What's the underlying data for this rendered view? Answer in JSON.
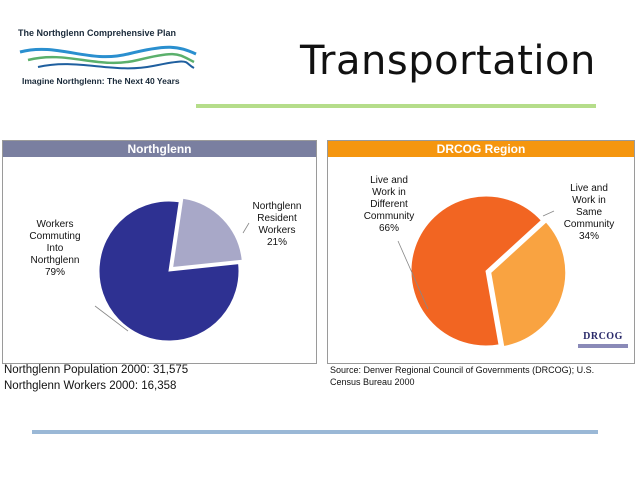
{
  "header": {
    "logo_top": "The Northglenn Comprehensive Plan",
    "logo_bottom": "Imagine Northglenn: The Next 40 Years",
    "title": "Transportation"
  },
  "colors": {
    "title_rule": "#b5dd8a",
    "bottom_rule": "#9ab8d6",
    "left_header_bg": "#7a7fa0",
    "right_header_bg": "#f5960f"
  },
  "left_chart": {
    "header": "Northglenn",
    "slices": [
      {
        "label_lines": [
          "Workers",
          "Commuting",
          "Into",
          "Northglenn",
          "79%"
        ],
        "value": 79,
        "color": "#2e3192"
      },
      {
        "label_lines": [
          "Northglenn",
          "Resident",
          "Workers",
          "21%"
        ],
        "value": 21,
        "color": "#a8a8c8"
      }
    ]
  },
  "right_chart": {
    "header": "DRCOG Region",
    "slices": [
      {
        "label_lines": [
          "Live and",
          "Work in",
          "Different",
          "Community",
          "66%"
        ],
        "value": 66,
        "color": "#f26522"
      },
      {
        "label_lines": [
          "Live and",
          "Work in",
          "Same",
          "Community",
          "34%"
        ],
        "value": 34,
        "color": "#f9a341"
      }
    ],
    "logo_text": "DRCOG"
  },
  "chart_data": [
    {
      "type": "pie",
      "title": "Northglenn",
      "categories": [
        "Workers Commuting Into Northglenn",
        "Northglenn Resident Workers"
      ],
      "values": [
        79,
        21
      ]
    },
    {
      "type": "pie",
      "title": "DRCOG Region",
      "categories": [
        "Live and Work in Different Community",
        "Live and Work in Same Community"
      ],
      "values": [
        66,
        34
      ]
    }
  ],
  "notes": {
    "population": "Northglenn Population 2000: 31,575",
    "workers": "Northglenn Workers 2000: 16,358",
    "source": "Source: Denver Regional Council of Governments (DRCOG); U.S. Census Bureau 2000"
  }
}
